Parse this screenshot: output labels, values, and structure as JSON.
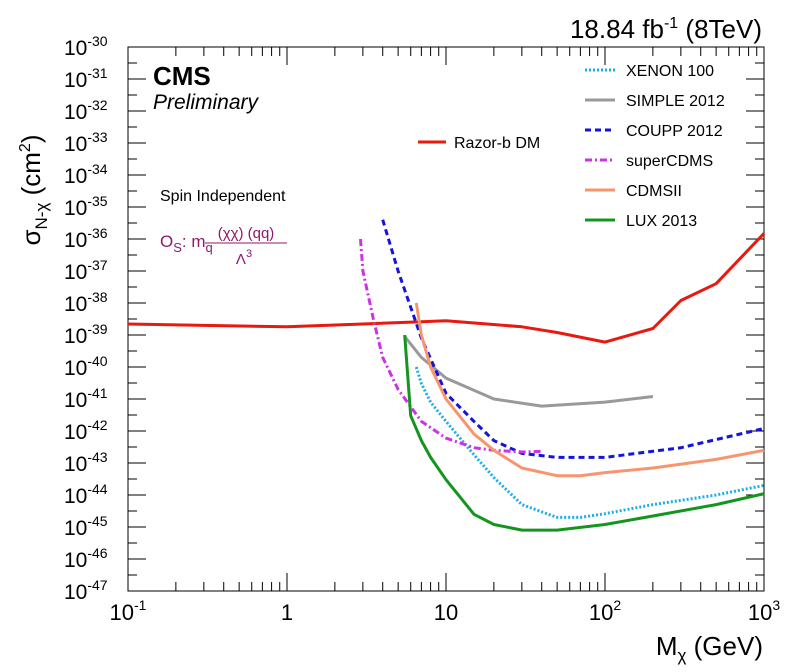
{
  "header": {
    "lumi": "18.84 fb",
    "lumi_exp": "-1",
    "energy": " (8TeV)"
  },
  "labels": {
    "experiment": "CMS",
    "status": "Preliminary",
    "analysis_type": "Spin Independent",
    "operator_prefix": "O",
    "operator_sub": "S",
    "operator_colon": ": m",
    "operator_q": "q",
    "operator_num": "(χχ) (qq)",
    "operator_den": "Λ",
    "operator_den_exp": "3"
  },
  "chart_data": {
    "type": "line",
    "xscale": "log",
    "yscale": "log",
    "xlim": [
      0.1,
      1000
    ],
    "ylim": [
      1e-47,
      1e-30
    ],
    "xlabel": "M",
    "xlabel_sub": "χ",
    "xlabel_unit": " (GeV)",
    "ylabel": "σ",
    "ylabel_sub": "N-χ",
    "ylabel_unit": " (cm",
    "ylabel_unit_exp": "2",
    "ylabel_unit_close": ")",
    "x_ticks": [
      {
        "base": "10",
        "exp": "-1"
      },
      {
        "base": "1",
        "exp": ""
      },
      {
        "base": "10",
        "exp": ""
      },
      {
        "base": "10",
        "exp": "2"
      },
      {
        "base": "10",
        "exp": "3"
      }
    ],
    "y_ticks": [
      "-30",
      "-31",
      "-32",
      "-33",
      "-34",
      "-35",
      "-36",
      "-37",
      "-38",
      "-39",
      "-40",
      "-41",
      "-42",
      "-43",
      "-44",
      "-45",
      "-46",
      "-47"
    ],
    "y_tick_base": "10",
    "grid": false,
    "series": [
      {
        "name": "Razor-b DM",
        "color": "#e8190f",
        "dash": "solid",
        "x": [
          0.1,
          0.3,
          1,
          3,
          7,
          10,
          30,
          50,
          100,
          200,
          300,
          500,
          1000
        ],
        "y": [
          2.2e-39,
          2e-39,
          1.8e-39,
          2.2e-39,
          2.6e-39,
          2.8e-39,
          1.8e-39,
          1.2e-39,
          6e-40,
          1.6e-39,
          1.2e-38,
          4e-38,
          1.5e-36
        ]
      },
      {
        "name": "XENON 100",
        "color": "#1aaee8",
        "dash": "dot",
        "x": [
          6.5,
          7,
          8,
          10,
          15,
          20,
          30,
          50,
          70,
          100,
          200,
          500,
          1000
        ],
        "y": [
          1e-40,
          3e-41,
          8e-42,
          2e-42,
          1.8e-43,
          3.5e-44,
          5e-45,
          2e-45,
          2e-45,
          2.6e-45,
          5e-45,
          1e-44,
          2e-44
        ]
      },
      {
        "name": "SIMPLE 2012",
        "color": "#999999",
        "dash": "solid",
        "x": [
          5.5,
          7,
          10,
          20,
          40,
          100,
          200
        ],
        "y": [
          9e-40,
          2e-40,
          4.5e-41,
          1e-41,
          6e-42,
          8e-42,
          1.2e-41
        ]
      },
      {
        "name": "COUPP 2012",
        "color": "#1414dc",
        "dash": "dash",
        "x": [
          4,
          5,
          7,
          10,
          15,
          20,
          30,
          50,
          100,
          300,
          1000
        ],
        "y": [
          4e-36,
          1e-37,
          8e-40,
          1.5e-41,
          2e-42,
          5e-43,
          2e-43,
          1.5e-43,
          1.5e-43,
          3e-43,
          1.2e-42
        ]
      },
      {
        "name": "superCDMS",
        "color": "#cc33e6",
        "dash": "dashdot",
        "x": [
          2.9,
          3,
          3.5,
          4,
          5,
          7,
          10,
          15,
          20,
          30,
          40
        ],
        "y": [
          1e-36,
          1e-37,
          3e-39,
          2e-40,
          2e-41,
          2e-42,
          6e-43,
          3e-43,
          2.5e-43,
          2.2e-43,
          2.3e-43
        ]
      },
      {
        "name": "CDMSII",
        "color": "#f7966e",
        "dash": "solid",
        "x": [
          6.5,
          7,
          8,
          10,
          15,
          20,
          30,
          50,
          70,
          100,
          200,
          500,
          1000
        ],
        "y": [
          1e-38,
          1e-39,
          1e-40,
          1e-41,
          8e-43,
          2.5e-43,
          7e-44,
          4e-44,
          4e-44,
          5e-44,
          7e-44,
          1.3e-43,
          2.5e-43
        ]
      },
      {
        "name": "LUX 2013",
        "color": "#14961e",
        "dash": "solid",
        "x": [
          5.5,
          6,
          7,
          8,
          10,
          15,
          20,
          30,
          50,
          100,
          200,
          500,
          1000
        ],
        "y": [
          1e-39,
          3e-42,
          5e-43,
          1.5e-43,
          3e-44,
          2.5e-45,
          1.2e-45,
          8e-46,
          8e-46,
          1.2e-45,
          2.2e-45,
          5e-45,
          1.1e-44
        ]
      }
    ]
  }
}
